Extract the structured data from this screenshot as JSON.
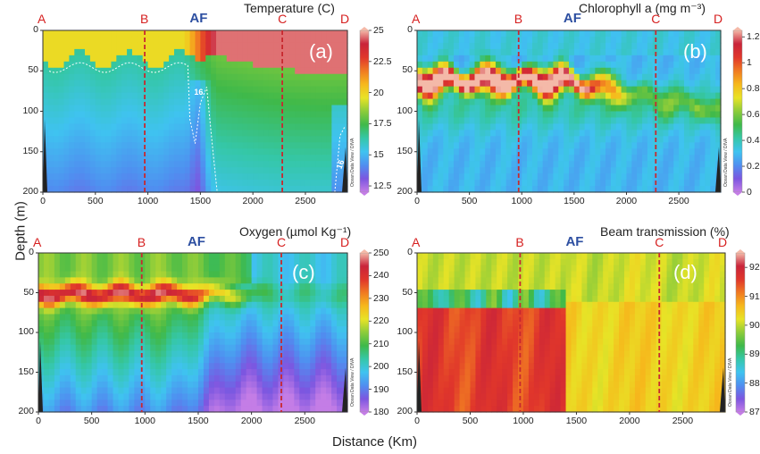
{
  "figure": {
    "ylabel": "Depth (m)",
    "xlabel": "Distance (Km)"
  },
  "chart_data": [
    {
      "type": "heatmap",
      "id": "a",
      "title": "Temperature (C)",
      "panel_label": "(a)",
      "section_letters": [
        "A",
        "B",
        "C",
        "D"
      ],
      "front_label": "AF",
      "x_ticks": [
        "0",
        "500",
        "1000",
        "1500",
        "2000",
        "2500"
      ],
      "y_ticks": [
        "0",
        "50",
        "100",
        "150",
        "200"
      ],
      "xlim": [
        0,
        2900
      ],
      "ylim": [
        0,
        200
      ],
      "colorbar_ticks": [
        "25",
        "22.5",
        "20",
        "17.5",
        "15",
        "12.5"
      ],
      "colorbar_range": [
        12,
        25
      ],
      "contour_labels": [
        "16",
        "16"
      ],
      "watermark": "Ocean Data View / DIVA"
    },
    {
      "type": "heatmap",
      "id": "b",
      "title": "Chlorophyll a (mg m⁻³)",
      "panel_label": "(b)",
      "section_letters": [
        "A",
        "B",
        "C",
        "D"
      ],
      "front_label": "AF",
      "x_ticks": [
        "0",
        "500",
        "1000",
        "1500",
        "2000",
        "2500"
      ],
      "y_ticks": [
        "0",
        "50",
        "100",
        "150",
        "200"
      ],
      "xlim": [
        0,
        2900
      ],
      "ylim": [
        0,
        200
      ],
      "colorbar_ticks": [
        "1.2",
        "1",
        "0.8",
        "0.6",
        "0.4",
        "0.2",
        "0"
      ],
      "colorbar_range": [
        0,
        1.25
      ],
      "watermark": "Ocean Data View / DIVA"
    },
    {
      "type": "heatmap",
      "id": "c",
      "title": "Oxygen (µmol Kg⁻¹)",
      "panel_label": "(c)",
      "section_letters": [
        "A",
        "B",
        "C",
        "D"
      ],
      "front_label": "AF",
      "x_ticks": [
        "0",
        "500",
        "1000",
        "1500",
        "2000",
        "2500"
      ],
      "y_ticks": [
        "0",
        "50",
        "100",
        "150",
        "200"
      ],
      "xlim": [
        0,
        2900
      ],
      "ylim": [
        0,
        200
      ],
      "colorbar_ticks": [
        "250",
        "240",
        "230",
        "220",
        "210",
        "200",
        "190",
        "180"
      ],
      "colorbar_range": [
        180,
        250
      ],
      "watermark": "Ocean Data View / DIVA"
    },
    {
      "type": "heatmap",
      "id": "d",
      "title": "Beam transmission (%)",
      "panel_label": "(d)",
      "section_letters": [
        "A",
        "B",
        "C",
        "D"
      ],
      "front_label": "AF",
      "x_ticks": [
        "0",
        "500",
        "1000",
        "1500",
        "2000",
        "2500"
      ],
      "y_ticks": [
        "0",
        "50",
        "100",
        "150",
        "200"
      ],
      "xlim": [
        0,
        2900
      ],
      "ylim": [
        0,
        200
      ],
      "colorbar_ticks": [
        "92",
        "91",
        "90",
        "89",
        "88",
        "87"
      ],
      "colorbar_range": [
        87,
        92.5
      ],
      "watermark": "Ocean Data View / DIVA"
    }
  ],
  "section_positions_km": [
    0,
    970,
    2280,
    2870
  ]
}
